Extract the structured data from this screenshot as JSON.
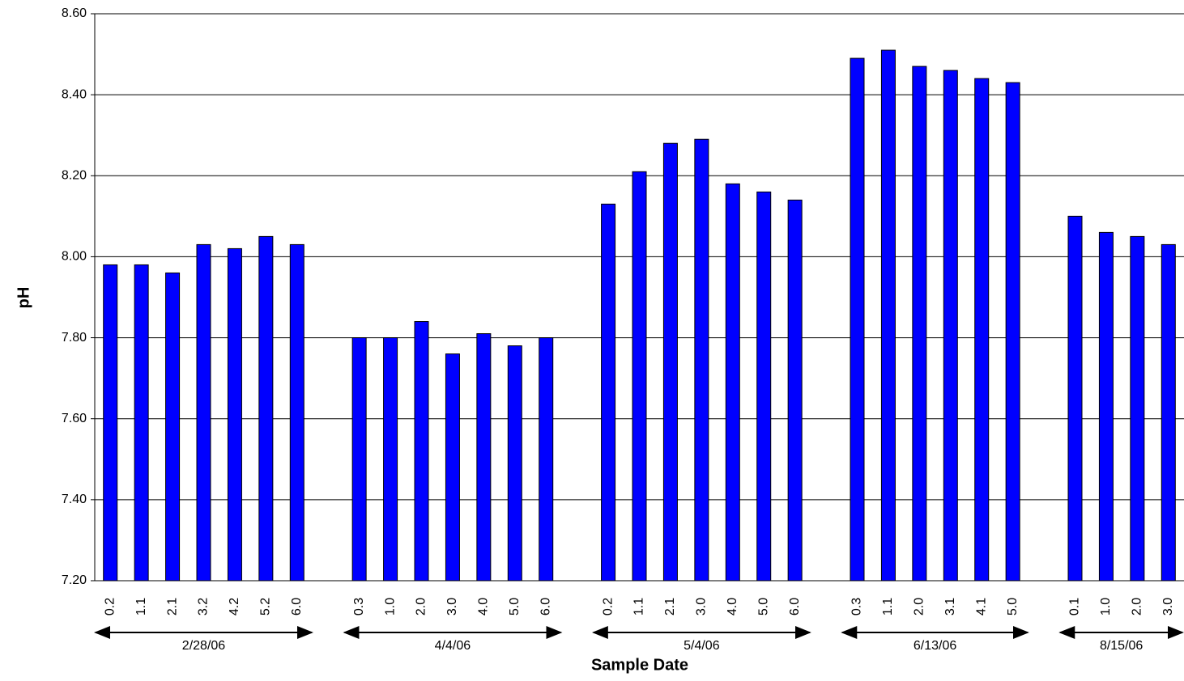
{
  "chart_data": {
    "type": "bar",
    "y_label": "pH",
    "x_label": "Sample Date",
    "categories": [
      "0.2",
      "1.1",
      "2.1",
      "3.2",
      "4.2",
      "5.2",
      "6.0",
      null,
      "0.3",
      "1.0",
      "2.0",
      "3.0",
      "4.0",
      "5.0",
      "6.0",
      null,
      "0.2",
      "1.1",
      "2.1",
      "3.0",
      "4.0",
      "5.0",
      "6.0",
      null,
      "0.3",
      "1.1",
      "2.0",
      "3.1",
      "4.1",
      "5.0",
      null,
      "0.1",
      "1.0",
      "2.0",
      "3.0"
    ],
    "values": [
      7.98,
      7.98,
      7.96,
      8.03,
      8.02,
      8.05,
      8.03,
      null,
      7.8,
      7.8,
      7.84,
      7.76,
      7.81,
      7.78,
      7.8,
      null,
      8.13,
      8.21,
      8.28,
      8.29,
      8.18,
      8.16,
      8.14,
      null,
      8.49,
      8.51,
      8.47,
      8.46,
      8.44,
      8.43,
      null,
      8.1,
      8.06,
      8.05,
      8.03
    ],
    "group_labels": [
      "2/28/06",
      "4/4/06",
      "5/4/06",
      "6/13/06",
      "8/15/06"
    ],
    "color": "#0000ff",
    "ylim": [
      7.2,
      8.6
    ],
    "yticks": [
      {
        "value": 7.2,
        "label": "7.20"
      },
      {
        "value": 7.4,
        "label": "7.40"
      },
      {
        "value": 7.6,
        "label": "7.60"
      },
      {
        "value": 7.8,
        "label": "7.80"
      },
      {
        "value": 8.0,
        "label": "8.00"
      },
      {
        "value": 8.2,
        "label": "8.20"
      },
      {
        "value": 8.4,
        "label": "8.40"
      },
      {
        "value": 8.6,
        "label": "8.60"
      }
    ],
    "grid": true
  }
}
